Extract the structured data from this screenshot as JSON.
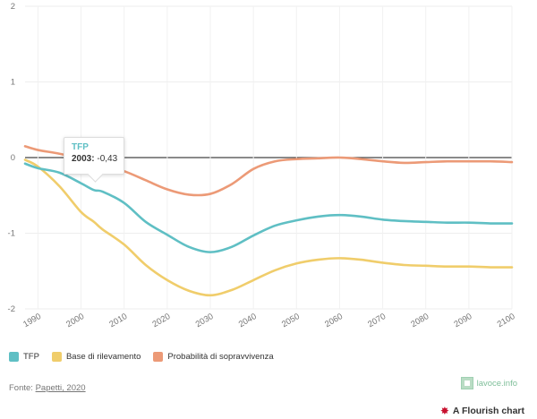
{
  "chart_data": {
    "type": "line",
    "x": [
      1987,
      1990,
      1995,
      2000,
      2003,
      2005,
      2010,
      2015,
      2020,
      2025,
      2030,
      2035,
      2040,
      2045,
      2050,
      2055,
      2060,
      2065,
      2070,
      2075,
      2080,
      2085,
      2090,
      2095,
      2100
    ],
    "series": [
      {
        "name": "TFP",
        "color": "#5fbfc4",
        "values": [
          -0.08,
          -0.14,
          -0.2,
          -0.34,
          -0.43,
          -0.45,
          -0.6,
          -0.85,
          -1.02,
          -1.18,
          -1.25,
          -1.18,
          -1.03,
          -0.9,
          -0.83,
          -0.78,
          -0.76,
          -0.78,
          -0.82,
          -0.84,
          -0.85,
          -0.86,
          -0.86,
          -0.87,
          -0.87
        ]
      },
      {
        "name": "Base di rilevamento",
        "color": "#f0cd6b",
        "values": [
          -0.03,
          -0.12,
          -0.38,
          -0.72,
          -0.85,
          -0.95,
          -1.15,
          -1.42,
          -1.62,
          -1.76,
          -1.82,
          -1.75,
          -1.62,
          -1.49,
          -1.4,
          -1.35,
          -1.33,
          -1.35,
          -1.39,
          -1.42,
          -1.43,
          -1.44,
          -1.44,
          -1.45,
          -1.45
        ]
      },
      {
        "name": "Probabilità di sopravvivenza",
        "color": "#ec9a77",
        "values": [
          0.15,
          0.1,
          0.05,
          -0.02,
          -0.06,
          -0.1,
          -0.18,
          -0.3,
          -0.42,
          -0.49,
          -0.48,
          -0.35,
          -0.15,
          -0.05,
          -0.02,
          -0.01,
          0.0,
          -0.02,
          -0.05,
          -0.07,
          -0.06,
          -0.05,
          -0.05,
          -0.05,
          -0.06
        ]
      }
    ],
    "x_ticks": [
      "1990",
      "2000",
      "2010",
      "2020",
      "2030",
      "2040",
      "2050",
      "2060",
      "2070",
      "2080",
      "2090",
      "2100"
    ],
    "y_ticks": [
      "2",
      "1",
      "0",
      "-1",
      "-2"
    ],
    "xlim": [
      1987,
      2100
    ],
    "ylim": [
      -2,
      2
    ],
    "grid": true,
    "legend": "bottom-left"
  },
  "tooltip": {
    "series": "TFP",
    "year": "2003:",
    "value": "-0,43"
  },
  "legend_items": [
    "TFP",
    "Base di rilevamento",
    "Probabilità di sopravvivenza"
  ],
  "source": {
    "prefix": "Fonte: ",
    "link": "Papetti, 2020"
  },
  "brand": {
    "lavoce": "lavoce.info",
    "flourish": "A Flourish chart"
  }
}
